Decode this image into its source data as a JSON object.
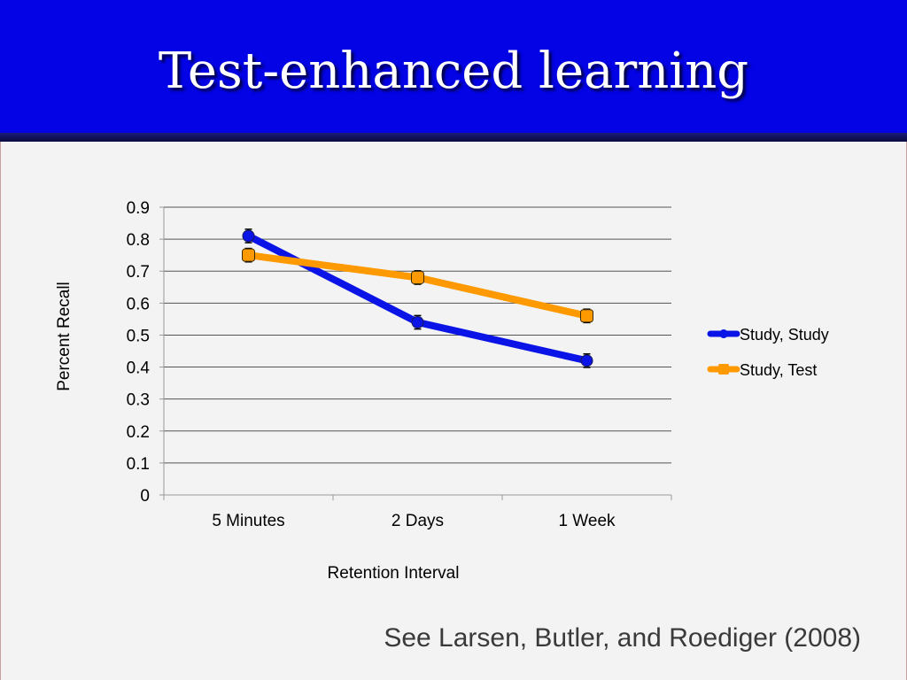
{
  "slide": {
    "title": "Test-enhanced learning",
    "citation": "See Larsen, Butler, and Roediger (2008)"
  },
  "colors": {
    "header": "#0303e6",
    "study_study": "#0a14e6",
    "study_test": "#ff9900"
  },
  "chart_data": {
    "type": "line",
    "title": "",
    "xlabel": "Retention Interval",
    "ylabel": "Percent Recall",
    "categories": [
      "5 Minutes",
      "2 Days",
      "1 Week"
    ],
    "ylim": [
      0,
      0.9
    ],
    "yticks": [
      "0",
      "0.1",
      "0.2",
      "0.3",
      "0.4",
      "0.5",
      "0.6",
      "0.7",
      "0.8",
      "0.9"
    ],
    "grid": true,
    "legend_position": "right",
    "series": [
      {
        "name": "Study, Study",
        "values": [
          0.81,
          0.54,
          0.42
        ],
        "error": [
          0.01,
          0.01,
          0.01
        ],
        "color": "#0a14e6",
        "marker": "circle"
      },
      {
        "name": "Study, Test",
        "values": [
          0.75,
          0.68,
          0.56
        ],
        "error": [
          0.01,
          0.01,
          0.01
        ],
        "color": "#ff9900",
        "marker": "square"
      }
    ]
  }
}
